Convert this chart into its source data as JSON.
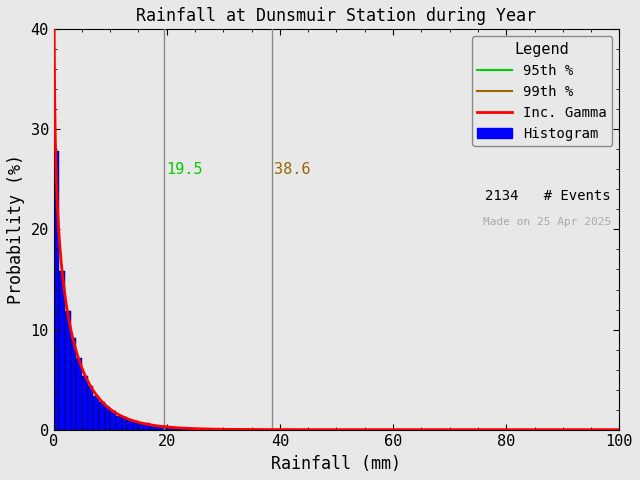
{
  "title": "Rainfall at Dunsmuir Station during Year",
  "xlabel": "Rainfall (mm)",
  "ylabel": "Probability (%)",
  "xlim": [
    0,
    100
  ],
  "ylim": [
    0,
    40
  ],
  "xticks": [
    0,
    20,
    40,
    60,
    80,
    100
  ],
  "yticks": [
    0,
    10,
    20,
    30,
    40
  ],
  "percentile_95": 19.5,
  "percentile_99": 38.6,
  "percentile_95_color": "#00cc00",
  "percentile_99_color": "#996600",
  "percentile_line_color": "#888888",
  "gamma_color": "#ff0000",
  "hist_color": "#0000ff",
  "hist_edge_color": "#000000",
  "n_events": 2134,
  "gamma_shape": 0.75,
  "gamma_scale": 5.5,
  "bin_width": 1.0,
  "watermark": "Made on 25 Apr 2025",
  "watermark_color": "#aaaaaa",
  "background_color": "#e8e8e8",
  "legend_title": "Legend",
  "label_95": "95th %",
  "label_99": "99th %",
  "label_gamma": "Inc. Gamma",
  "label_hist": "Histogram",
  "label_nevents": "2134   # Events",
  "title_fontsize": 12,
  "axis_fontsize": 12,
  "tick_fontsize": 11,
  "legend_fontsize": 10
}
